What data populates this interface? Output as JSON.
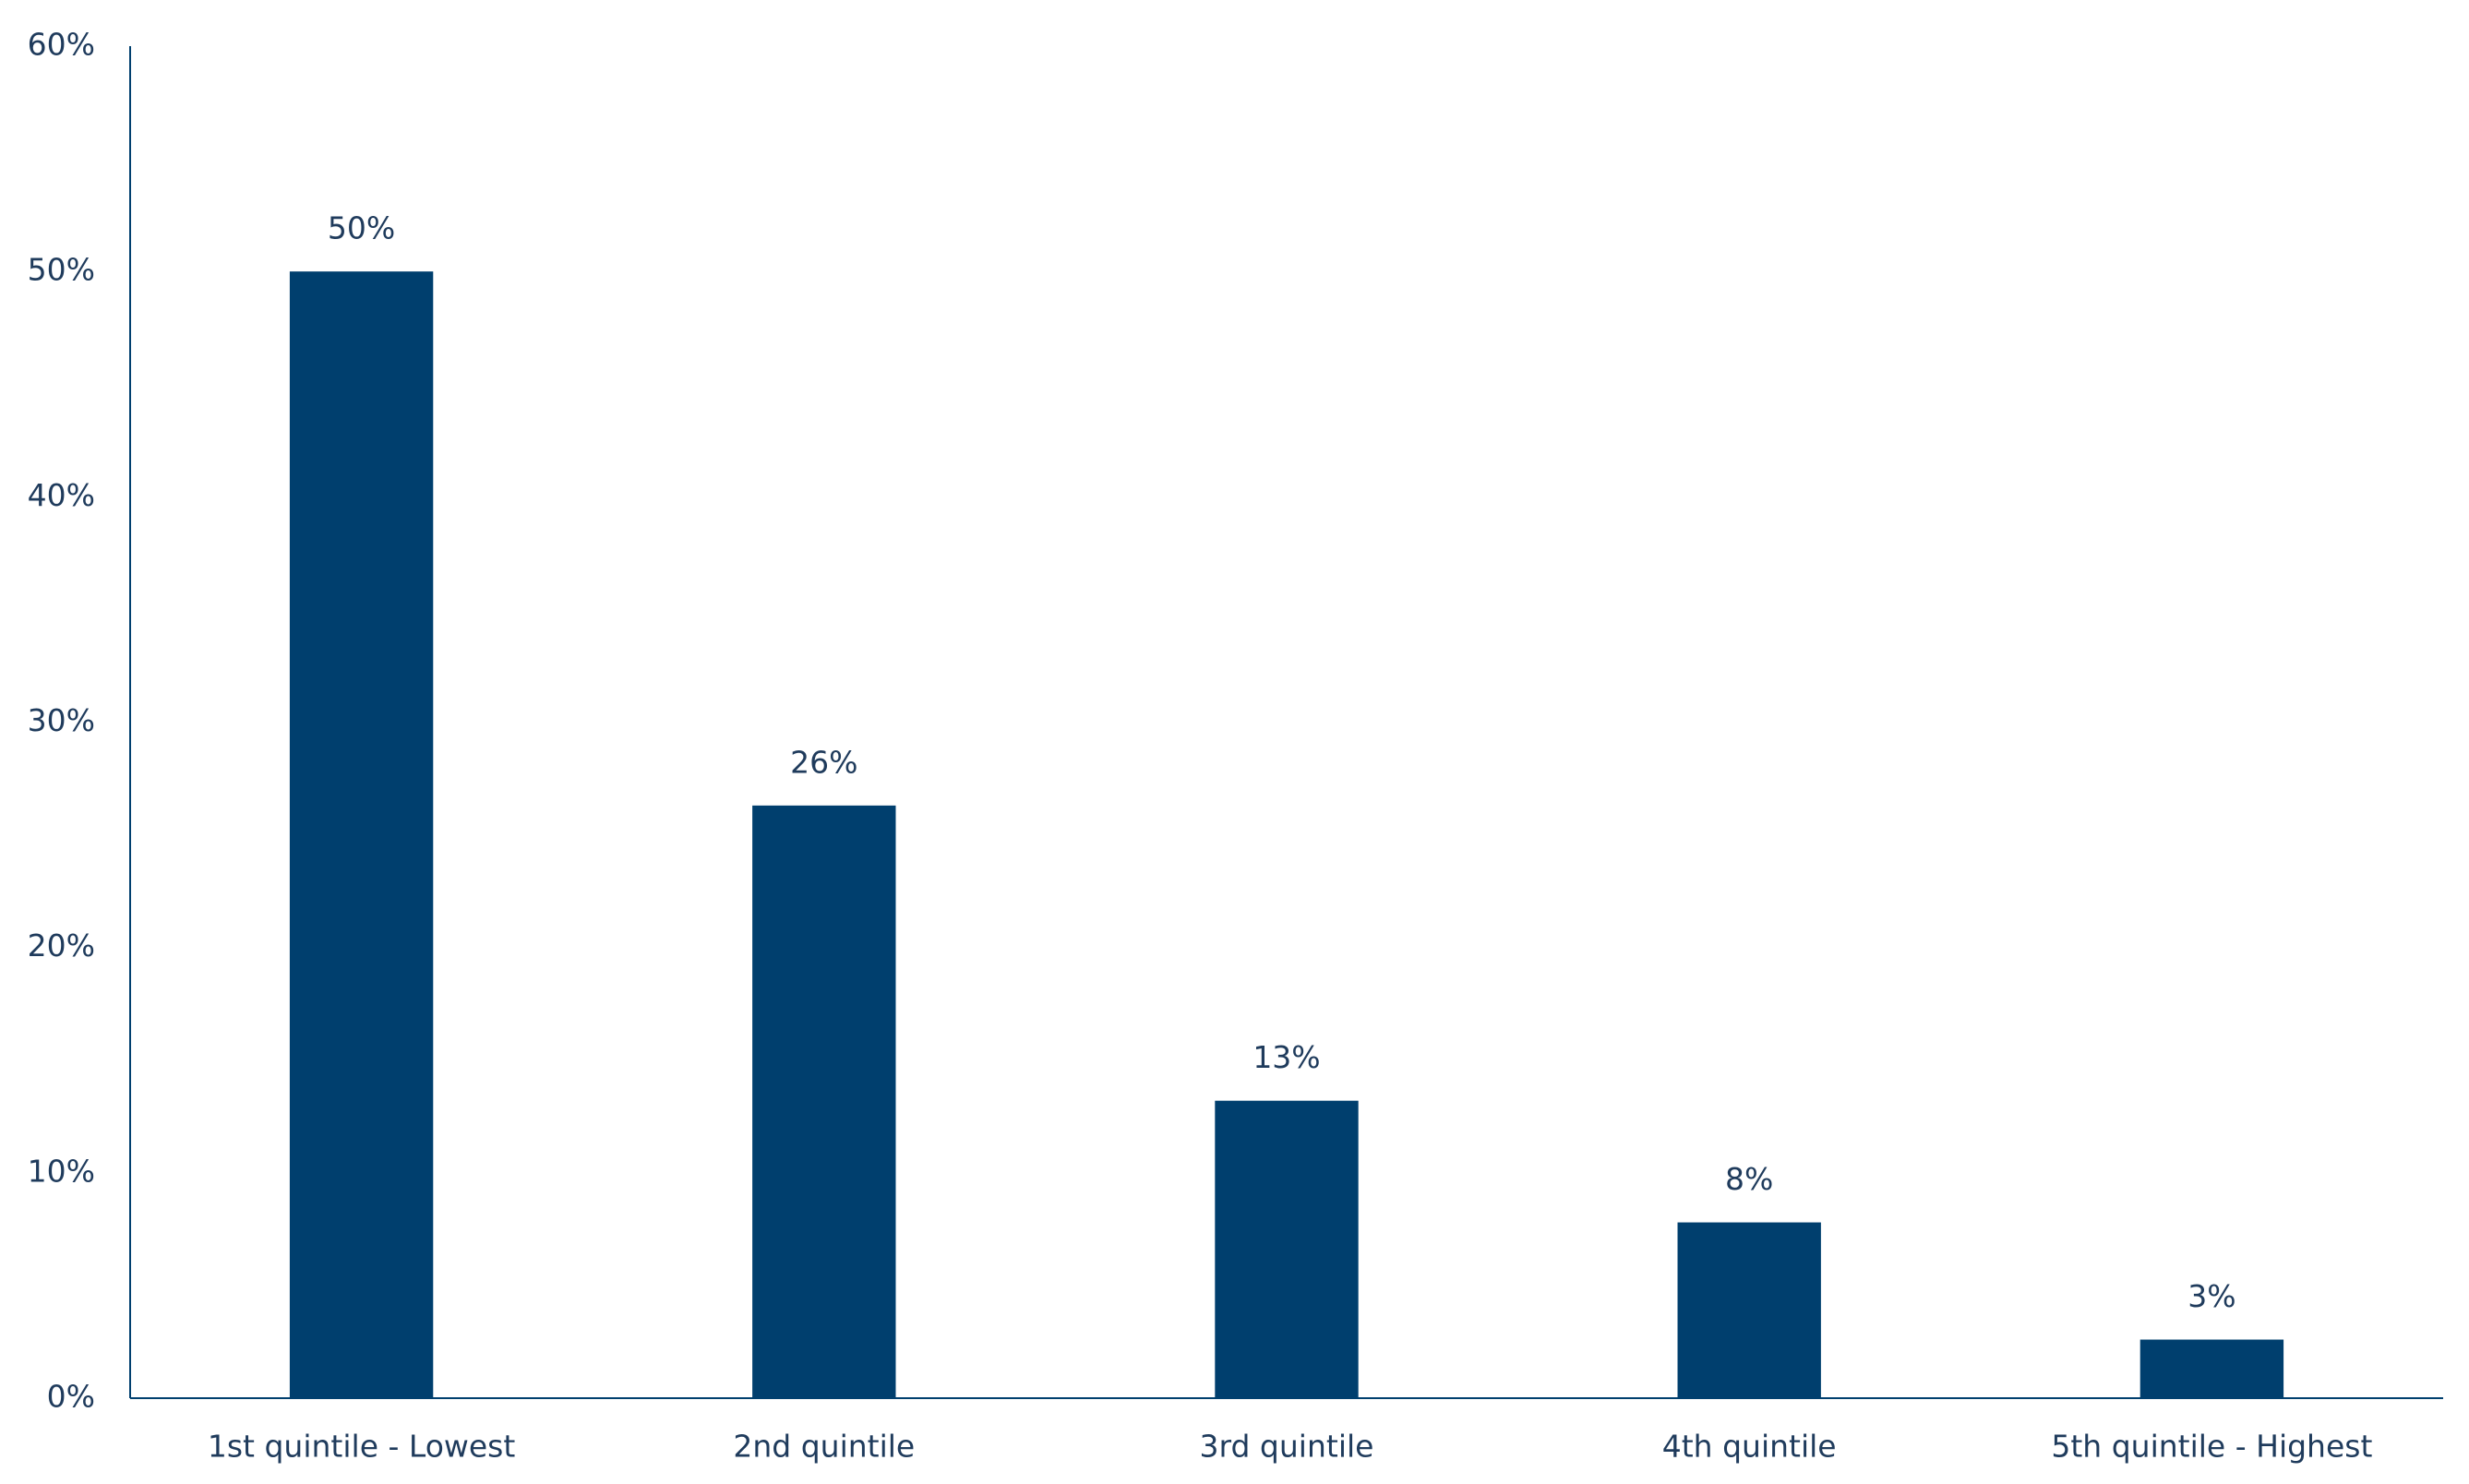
{
  "chart_data": {
    "type": "bar",
    "categories": [
      "1st quintile - Lowest",
      "2nd quintile",
      "3rd quintile",
      "4th quintile",
      "5th quintile - Highest"
    ],
    "values": [
      50,
      26.3,
      13.2,
      7.8,
      2.6
    ],
    "value_labels": [
      "50%",
      "26%",
      "13%",
      "8%",
      "3%"
    ],
    "color": "#003f6e",
    "ylim": [
      0,
      60
    ],
    "yticks": [
      {
        "value": 0,
        "label": "0%"
      },
      {
        "value": 10,
        "label": "10%"
      },
      {
        "value": 20,
        "label": "20%"
      },
      {
        "value": 30,
        "label": "30%"
      },
      {
        "value": 40,
        "label": "40%"
      },
      {
        "value": 50,
        "label": "50%"
      },
      {
        "value": 60,
        "label": "60%"
      }
    ],
    "grid": false
  }
}
